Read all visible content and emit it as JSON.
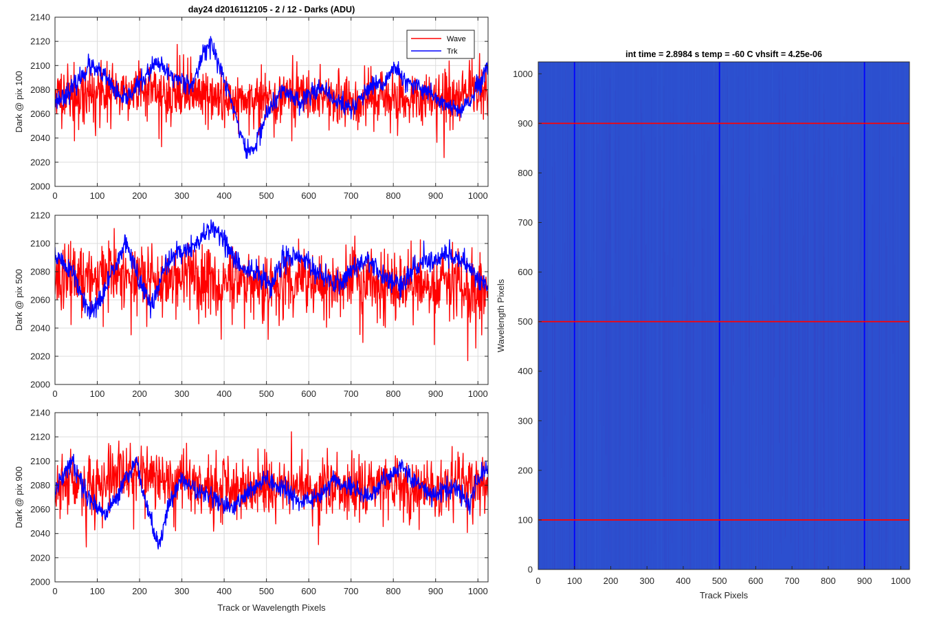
{
  "figure": {
    "left_title": "day24 d2016112105 - 2 / 12 - Darks (ADU)",
    "right_title": "int time = 2.8984 s    temp = -60 C    vhsift = 4.25e-06"
  },
  "chart_data": [
    {
      "type": "line",
      "ylabel": "Dark @ pix 100",
      "xlabel": "",
      "xlim": [
        0,
        1024
      ],
      "ylim": [
        2000,
        2140
      ],
      "xticks": [
        0,
        100,
        200,
        300,
        400,
        500,
        600,
        700,
        800,
        900,
        1000
      ],
      "yticks": [
        2000,
        2020,
        2040,
        2060,
        2080,
        2100,
        2120,
        2140
      ],
      "grid": true,
      "legend": {
        "placement": "top-right",
        "entries": [
          "Wave",
          "Trk"
        ]
      },
      "series": [
        {
          "name": "Wave",
          "color": "#ff0000",
          "mean": 2077,
          "noise": 11,
          "seed": 11,
          "keypoints": [
            [
              0,
              2075
            ],
            [
              100,
              2078
            ],
            [
              200,
              2080
            ],
            [
              300,
              2076
            ],
            [
              400,
              2072
            ],
            [
              500,
              2075
            ],
            [
              600,
              2074
            ],
            [
              700,
              2071
            ],
            [
              800,
              2073
            ],
            [
              900,
              2072
            ],
            [
              1024,
              2082
            ]
          ]
        },
        {
          "name": "Trk",
          "color": "#0000ff",
          "noise": 4,
          "seed": 23,
          "keypoints": [
            [
              0,
              2070
            ],
            [
              40,
              2080
            ],
            [
              80,
              2100
            ],
            [
              120,
              2090
            ],
            [
              160,
              2070
            ],
            [
              200,
              2085
            ],
            [
              240,
              2102
            ],
            [
              280,
              2090
            ],
            [
              330,
              2085
            ],
            [
              350,
              2112
            ],
            [
              370,
              2118
            ],
            [
              390,
              2098
            ],
            [
              420,
              2068
            ],
            [
              450,
              2030
            ],
            [
              470,
              2030
            ],
            [
              500,
              2060
            ],
            [
              540,
              2080
            ],
            [
              580,
              2070
            ],
            [
              620,
              2082
            ],
            [
              660,
              2072
            ],
            [
              700,
              2064
            ],
            [
              740,
              2080
            ],
            [
              780,
              2085
            ],
            [
              800,
              2100
            ],
            [
              830,
              2085
            ],
            [
              880,
              2080
            ],
            [
              920,
              2068
            ],
            [
              960,
              2062
            ],
            [
              990,
              2075
            ],
            [
              1024,
              2098
            ]
          ]
        }
      ]
    },
    {
      "type": "line",
      "ylabel": "Dark @ pix 500",
      "xlabel": "",
      "xlim": [
        0,
        1024
      ],
      "ylim": [
        2000,
        2120
      ],
      "xticks": [
        0,
        100,
        200,
        300,
        400,
        500,
        600,
        700,
        800,
        900,
        1000
      ],
      "yticks": [
        2000,
        2020,
        2040,
        2060,
        2080,
        2100,
        2120
      ],
      "grid": true,
      "series": [
        {
          "name": "Wave",
          "color": "#ff0000",
          "mean": 2075,
          "noise": 11,
          "seed": 37,
          "keypoints": [
            [
              0,
              2076
            ],
            [
              200,
              2078
            ],
            [
              400,
              2074
            ],
            [
              600,
              2073
            ],
            [
              800,
              2072
            ],
            [
              1024,
              2070
            ]
          ]
        },
        {
          "name": "Trk",
          "color": "#0000ff",
          "noise": 4,
          "seed": 51,
          "keypoints": [
            [
              0,
              2092
            ],
            [
              40,
              2080
            ],
            [
              80,
              2050
            ],
            [
              110,
              2060
            ],
            [
              140,
              2085
            ],
            [
              170,
              2100
            ],
            [
              200,
              2072
            ],
            [
              230,
              2055
            ],
            [
              260,
              2085
            ],
            [
              300,
              2095
            ],
            [
              340,
              2100
            ],
            [
              370,
              2112
            ],
            [
              390,
              2108
            ],
            [
              420,
              2090
            ],
            [
              450,
              2080
            ],
            [
              480,
              2080
            ],
            [
              510,
              2068
            ],
            [
              540,
              2090
            ],
            [
              580,
              2092
            ],
            [
              620,
              2080
            ],
            [
              660,
              2070
            ],
            [
              700,
              2080
            ],
            [
              740,
              2090
            ],
            [
              780,
              2075
            ],
            [
              820,
              2070
            ],
            [
              860,
              2085
            ],
            [
              900,
              2090
            ],
            [
              940,
              2092
            ],
            [
              980,
              2085
            ],
            [
              1010,
              2072
            ],
            [
              1024,
              2068
            ]
          ]
        }
      ]
    },
    {
      "type": "line",
      "ylabel": "Dark @ pix 900",
      "xlabel": "Track or Wavelength Pixels",
      "xlim": [
        0,
        1024
      ],
      "ylim": [
        2000,
        2140
      ],
      "xticks": [
        0,
        100,
        200,
        300,
        400,
        500,
        600,
        700,
        800,
        900,
        1000
      ],
      "yticks": [
        2000,
        2020,
        2040,
        2060,
        2080,
        2100,
        2120,
        2140
      ],
      "grid": true,
      "series": [
        {
          "name": "Wave",
          "color": "#ff0000",
          "mean": 2080,
          "noise": 12,
          "seed": 67,
          "keypoints": [
            [
              0,
              2078
            ],
            [
              200,
              2085
            ],
            [
              400,
              2080
            ],
            [
              600,
              2078
            ],
            [
              800,
              2078
            ],
            [
              1024,
              2082
            ]
          ]
        },
        {
          "name": "Trk",
          "color": "#0000ff",
          "noise": 4,
          "seed": 79,
          "keypoints": [
            [
              0,
              2075
            ],
            [
              40,
              2100
            ],
            [
              80,
              2070
            ],
            [
              120,
              2055
            ],
            [
              160,
              2080
            ],
            [
              190,
              2100
            ],
            [
              220,
              2060
            ],
            [
              245,
              2030
            ],
            [
              270,
              2065
            ],
            [
              300,
              2085
            ],
            [
              340,
              2075
            ],
            [
              380,
              2068
            ],
            [
              420,
              2060
            ],
            [
              460,
              2075
            ],
            [
              500,
              2085
            ],
            [
              540,
              2078
            ],
            [
              580,
              2065
            ],
            [
              620,
              2070
            ],
            [
              660,
              2085
            ],
            [
              700,
              2078
            ],
            [
              740,
              2070
            ],
            [
              780,
              2085
            ],
            [
              820,
              2095
            ],
            [
              860,
              2080
            ],
            [
              900,
              2070
            ],
            [
              940,
              2080
            ],
            [
              980,
              2065
            ],
            [
              1010,
              2090
            ],
            [
              1024,
              2095
            ]
          ]
        }
      ]
    },
    {
      "type": "heatmap",
      "xlabel": "Track Pixels",
      "ylabel": "Wavelength Pixels",
      "xlim": [
        0,
        1024
      ],
      "ylim": [
        0,
        1024
      ],
      "xticks": [
        0,
        100,
        200,
        300,
        400,
        500,
        600,
        700,
        800,
        900,
        1000
      ],
      "yticks": [
        0,
        100,
        200,
        300,
        400,
        500,
        600,
        700,
        800,
        900,
        1000
      ],
      "base_color": "#2c4fcf",
      "stripe_color": "#3a3fc0",
      "markers": {
        "vertical_lines": {
          "x": [
            100,
            500,
            900
          ],
          "color": "#0000ff"
        },
        "horizontal_lines": {
          "y": [
            100,
            500,
            900
          ],
          "color": "#ff0000"
        }
      }
    }
  ]
}
